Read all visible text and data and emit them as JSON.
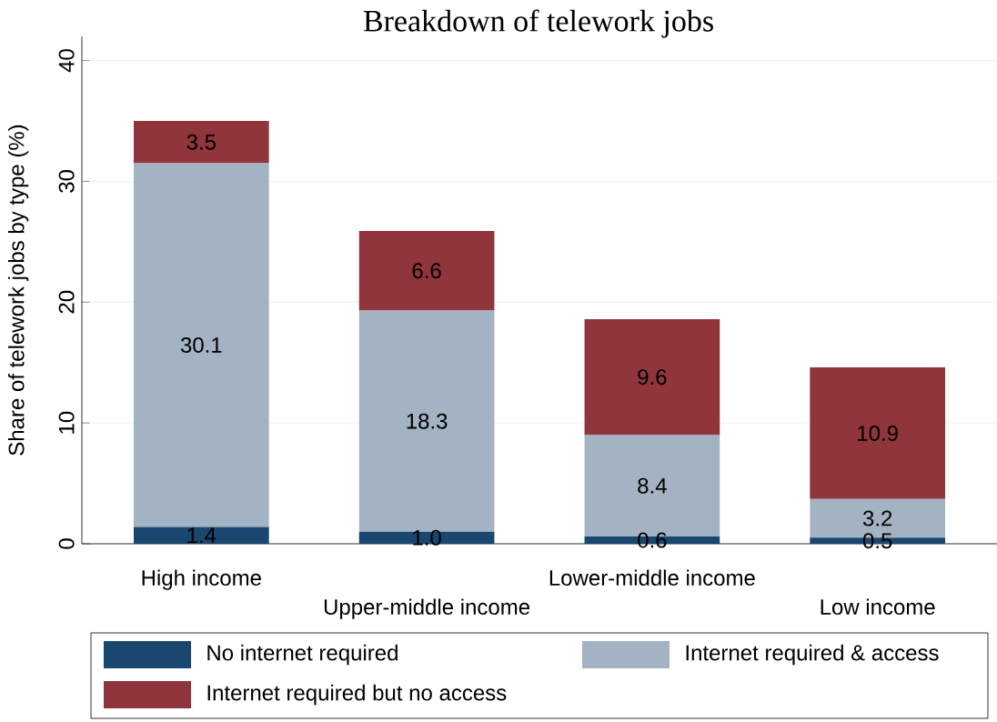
{
  "chart_data": {
    "type": "bar",
    "title": "Breakdown of telework jobs",
    "ylabel": "Share of telework jobs by type (%)",
    "categories": [
      "High income",
      "Upper-middle income",
      "Lower-middle income",
      "Low income"
    ],
    "stacked": true,
    "series": [
      {
        "name": "No internet required",
        "color": "#1a476f",
        "values": [
          1.4,
          1.0,
          0.6,
          0.5
        ],
        "value_labels": [
          "1.4",
          "1.0",
          "0.6",
          "0.5"
        ]
      },
      {
        "name": "Internet required & access",
        "color": "#a3b3c3",
        "values": [
          30.1,
          18.3,
          8.4,
          3.2
        ],
        "value_labels": [
          "30.1",
          "18.3",
          "8.4",
          "3.2"
        ]
      },
      {
        "name": "Internet required but no access",
        "color": "#90353b",
        "values": [
          3.5,
          6.6,
          9.6,
          10.9
        ],
        "value_labels": [
          "3.5",
          "6.6",
          "9.6",
          "10.9"
        ]
      }
    ],
    "ylim": [
      0,
      42
    ],
    "yticks": [
      0,
      10,
      20,
      30,
      40
    ],
    "grid": "y",
    "legend": "bottom"
  }
}
